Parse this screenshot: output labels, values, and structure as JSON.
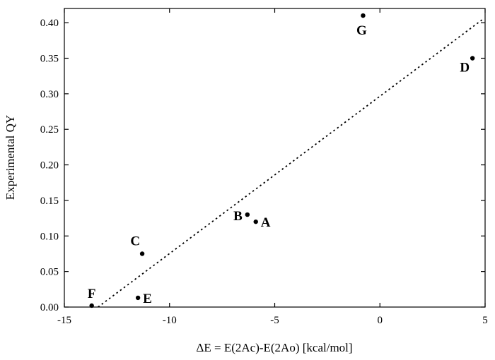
{
  "chart_data": {
    "type": "scatter",
    "title": "",
    "xlabel": "ΔE = E(2Ac)-E(2Ao) [kcal/mol]",
    "ylabel": "Experimental QY",
    "xlim": [
      -15,
      5
    ],
    "ylim": [
      0,
      0.42
    ],
    "x_ticks": [
      -15,
      -10,
      -5,
      0,
      5
    ],
    "x_tick_labels": [
      "-15",
      "-10",
      "-5",
      "0",
      "5"
    ],
    "y_ticks": [
      0,
      0.05,
      0.1,
      0.15,
      0.2,
      0.25,
      0.3,
      0.35,
      0.4
    ],
    "y_tick_labels": [
      "0.00",
      "0.05",
      "0.10",
      "0.15",
      "0.20",
      "0.25",
      "0.30",
      "0.35",
      "0.40"
    ],
    "grid": false,
    "points": [
      {
        "label": "A",
        "x": -5.9,
        "y": 0.12,
        "label_side": "right"
      },
      {
        "label": "B",
        "x": -6.3,
        "y": 0.13,
        "label_side": "left"
      },
      {
        "label": "C",
        "x": -11.3,
        "y": 0.075,
        "label_side": "upper-left"
      },
      {
        "label": "D",
        "x": 4.4,
        "y": 0.35,
        "label_side": "lower-left"
      },
      {
        "label": "E",
        "x": -11.5,
        "y": 0.013,
        "label_side": "right"
      },
      {
        "label": "F",
        "x": -13.7,
        "y": 0.002,
        "label_side": "above"
      },
      {
        "label": "G",
        "x": -0.8,
        "y": 0.41,
        "label_side": "below"
      }
    ],
    "fit_line": {
      "style": "dotted",
      "x": [
        -13.4,
        4.9
      ],
      "y": [
        0.0,
        0.405
      ]
    }
  }
}
